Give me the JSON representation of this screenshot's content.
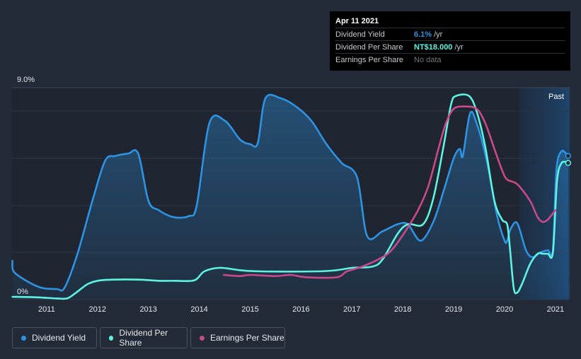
{
  "tooltip": {
    "date": "Apr 11 2021",
    "rows": [
      {
        "label": "Dividend Yield",
        "value": "6.1%",
        "unit": "/yr",
        "color": "#2e93e3"
      },
      {
        "label": "Dividend Per Share",
        "value": "NT$18.000",
        "unit": "/yr",
        "color": "#5ef2e0"
      },
      {
        "label": "Earnings Per Share",
        "value": "No data"
      }
    ]
  },
  "legend": [
    {
      "label": "Dividend Yield",
      "color": "#2e93e3"
    },
    {
      "label": "Dividend Per Share",
      "color": "#5ef2e0"
    },
    {
      "label": "Earnings Per Share",
      "color": "#c9498a"
    }
  ],
  "chart_data": {
    "type": "line",
    "x_range": [
      2010.32,
      2021.28
    ],
    "ylim": [
      0,
      9
    ],
    "y_tick_labels": [
      "9.0%",
      "0%"
    ],
    "x_tick_labels": [
      "2011",
      "2012",
      "2013",
      "2014",
      "2015",
      "2016",
      "2017",
      "2018",
      "2019",
      "2020",
      "2021"
    ],
    "x_ticks": [
      2011,
      2012,
      2013,
      2014,
      2015,
      2016,
      2017,
      2018,
      2019,
      2020,
      2021
    ],
    "past_label": "Past",
    "past_region_start": 2020.3,
    "series": [
      {
        "name": "Dividend Yield",
        "unit": "%",
        "color": "#2e93e3",
        "fill": true,
        "points": [
          [
            2010.33,
            1.65
          ],
          [
            2010.35,
            1.2
          ],
          [
            2010.6,
            0.8
          ],
          [
            2010.9,
            0.5
          ],
          [
            2011.2,
            0.45
          ],
          [
            2011.35,
            0.5
          ],
          [
            2011.6,
            1.9
          ],
          [
            2011.9,
            4.2
          ],
          [
            2012.15,
            5.9
          ],
          [
            2012.35,
            6.1
          ],
          [
            2012.6,
            6.2
          ],
          [
            2012.8,
            6.2
          ],
          [
            2013.0,
            4.2
          ],
          [
            2013.2,
            3.8
          ],
          [
            2013.5,
            3.5
          ],
          [
            2013.8,
            3.55
          ],
          [
            2013.95,
            4.0
          ],
          [
            2014.2,
            7.5
          ],
          [
            2014.5,
            7.6
          ],
          [
            2014.8,
            6.8
          ],
          [
            2015.0,
            6.6
          ],
          [
            2015.15,
            6.65
          ],
          [
            2015.3,
            8.55
          ],
          [
            2015.6,
            8.55
          ],
          [
            2015.9,
            8.2
          ],
          [
            2016.2,
            7.6
          ],
          [
            2016.5,
            6.6
          ],
          [
            2016.8,
            5.8
          ],
          [
            2017.1,
            5.2
          ],
          [
            2017.3,
            2.7
          ],
          [
            2017.6,
            2.9
          ],
          [
            2017.9,
            3.2
          ],
          [
            2018.1,
            3.2
          ],
          [
            2018.35,
            2.5
          ],
          [
            2018.6,
            3.3
          ],
          [
            2018.8,
            4.6
          ],
          [
            2019.0,
            6.0
          ],
          [
            2019.12,
            6.4
          ],
          [
            2019.18,
            6.1
          ],
          [
            2019.32,
            7.9
          ],
          [
            2019.45,
            7.5
          ],
          [
            2019.65,
            5.9
          ],
          [
            2019.85,
            3.6
          ],
          [
            2020.0,
            2.5
          ],
          [
            2020.05,
            2.5
          ],
          [
            2020.12,
            3.0
          ],
          [
            2020.25,
            3.25
          ],
          [
            2020.42,
            2.1
          ],
          [
            2020.55,
            1.8
          ],
          [
            2020.7,
            2.0
          ],
          [
            2020.85,
            2.1
          ],
          [
            2020.95,
            2.1
          ],
          [
            2021.02,
            5.5
          ],
          [
            2021.12,
            6.3
          ],
          [
            2021.25,
            6.1
          ]
        ]
      },
      {
        "name": "Dividend Per Share",
        "unit": "NT$",
        "color": "#5ef2e0",
        "fill": false,
        "points": [
          [
            2010.33,
            0.12
          ],
          [
            2010.8,
            0.1
          ],
          [
            2011.2,
            0.05
          ],
          [
            2011.4,
            0.05
          ],
          [
            2011.55,
            0.25
          ],
          [
            2011.8,
            0.65
          ],
          [
            2012.0,
            0.8
          ],
          [
            2012.3,
            0.85
          ],
          [
            2012.8,
            0.85
          ],
          [
            2013.2,
            0.8
          ],
          [
            2013.5,
            0.8
          ],
          [
            2013.9,
            0.82
          ],
          [
            2014.1,
            1.2
          ],
          [
            2014.4,
            1.35
          ],
          [
            2014.8,
            1.25
          ],
          [
            2015.2,
            1.2
          ],
          [
            2016.3,
            1.2
          ],
          [
            2016.7,
            1.25
          ],
          [
            2017.0,
            1.35
          ],
          [
            2017.4,
            1.4
          ],
          [
            2017.6,
            1.7
          ],
          [
            2017.9,
            2.8
          ],
          [
            2018.1,
            3.2
          ],
          [
            2018.4,
            3.2
          ],
          [
            2018.6,
            4.3
          ],
          [
            2018.8,
            6.5
          ],
          [
            2018.95,
            8.3
          ],
          [
            2019.05,
            8.65
          ],
          [
            2019.3,
            8.65
          ],
          [
            2019.45,
            8.0
          ],
          [
            2019.62,
            6.5
          ],
          [
            2019.8,
            4.2
          ],
          [
            2019.95,
            3.4
          ],
          [
            2020.05,
            3.2
          ],
          [
            2020.1,
            2.3
          ],
          [
            2020.18,
            0.5
          ],
          [
            2020.25,
            0.3
          ],
          [
            2020.35,
            0.7
          ],
          [
            2020.5,
            1.5
          ],
          [
            2020.65,
            1.95
          ],
          [
            2020.75,
            1.95
          ],
          [
            2020.85,
            1.95
          ],
          [
            2020.95,
            2.0
          ],
          [
            2021.03,
            5.0
          ],
          [
            2021.12,
            5.8
          ],
          [
            2021.25,
            5.8
          ]
        ]
      },
      {
        "name": "Earnings Per Share",
        "unit": "NT$",
        "color": "#c9498a",
        "fill": false,
        "points": [
          [
            2014.48,
            1.05
          ],
          [
            2014.8,
            1.0
          ],
          [
            2015.0,
            1.05
          ],
          [
            2015.5,
            1.0
          ],
          [
            2015.8,
            1.05
          ],
          [
            2016.1,
            0.95
          ],
          [
            2016.7,
            0.95
          ],
          [
            2016.9,
            1.2
          ],
          [
            2017.2,
            1.4
          ],
          [
            2017.6,
            1.8
          ],
          [
            2017.8,
            2.15
          ],
          [
            2018.05,
            2.9
          ],
          [
            2018.3,
            3.8
          ],
          [
            2018.5,
            4.8
          ],
          [
            2018.7,
            6.4
          ],
          [
            2018.85,
            7.5
          ],
          [
            2019.0,
            8.1
          ],
          [
            2019.2,
            8.2
          ],
          [
            2019.45,
            8.1
          ],
          [
            2019.62,
            7.5
          ],
          [
            2019.8,
            6.4
          ],
          [
            2019.95,
            5.5
          ],
          [
            2020.05,
            5.1
          ],
          [
            2020.25,
            4.9
          ],
          [
            2020.5,
            4.2
          ],
          [
            2020.65,
            3.5
          ],
          [
            2020.75,
            3.3
          ],
          [
            2020.85,
            3.4
          ],
          [
            2021.0,
            3.8
          ]
        ]
      }
    ]
  }
}
